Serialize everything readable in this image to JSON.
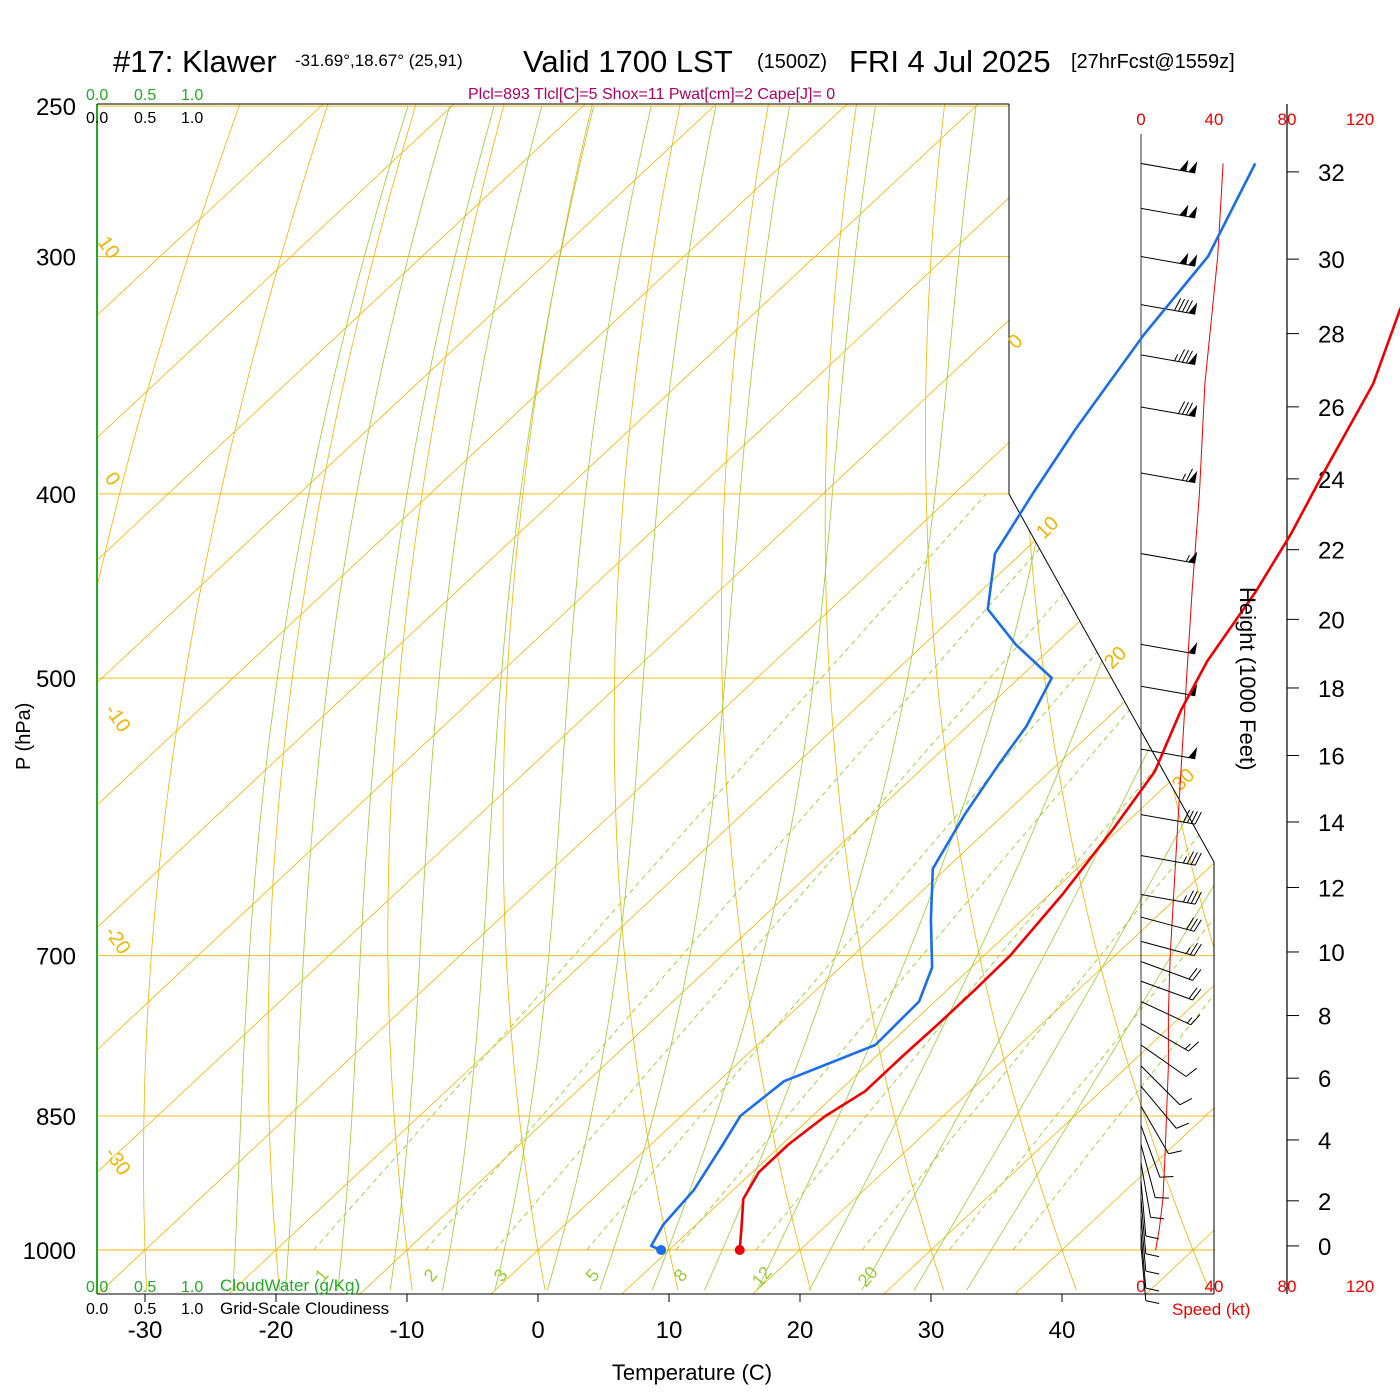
{
  "header": {
    "station": "#17: Klawer",
    "coords": "-31.69°,18.67° (25,91)",
    "valid": "Valid 1700 LST",
    "utc": "(1500Z)",
    "date": "FRI 4 Jul 2025",
    "forecast": "[27hrFcst@1559z]",
    "indices": "Plcl=893 Tlcl[C]=5 Shox=11 Pwat[cm]=2 Cape[J]= 0"
  },
  "colors": {
    "temperature": "#ee0000",
    "dewpoint": "#1a6ee8",
    "isotherm": "#f0b400",
    "dry_adiabat": "#f0b400",
    "moist_adiabat": "#99cc33",
    "mixing_ratio": "#99cc33",
    "cloudwater": "#22aa22",
    "indices": "#aa0066",
    "speed": "#ee0000"
  },
  "chart_data": {
    "type": "line",
    "title": "#17: Klawer Valid 1700 LST (1500Z) FRI 4 Jul 2025 [27hrFcst@1559z]",
    "xlabel": "Temperature (C)",
    "ylabel": "P (hPa)",
    "y2label": "Height (1000 Feet)",
    "speed_label": "Speed (kt)",
    "y_scale": "log",
    "ylim": [
      1000,
      250
    ],
    "pressure_ticks": [
      "250",
      "300",
      "400",
      "500",
      "700",
      "850",
      "1000"
    ],
    "pressure_values": [
      250,
      300,
      400,
      500,
      700,
      850,
      1000
    ],
    "temp_ticks": [
      "-30",
      "-20",
      "-10",
      "0",
      "10",
      "20",
      "30",
      "40"
    ],
    "temp_values": [
      -30,
      -20,
      -10,
      0,
      10,
      20,
      30,
      40
    ],
    "height_ticks": [
      "0",
      "2",
      "4",
      "6",
      "8",
      "10",
      "12",
      "14",
      "16",
      "18",
      "20",
      "22",
      "24",
      "26",
      "28",
      "30",
      "32"
    ],
    "height_values": [
      0.5,
      2,
      4,
      6,
      8,
      10,
      12,
      14,
      16,
      18,
      20,
      22,
      24,
      26,
      28,
      30,
      32.3
    ],
    "speed_ticks": [
      "0",
      "40",
      "80",
      "120"
    ],
    "speed_values": [
      0,
      40,
      80,
      120
    ],
    "cloud_ticks": [
      "0.0",
      "0.5",
      "1.0"
    ],
    "cloudwater_label": "CloudWater (g/Kg)",
    "cloudiness_label": "Grid-Scale Cloudiness",
    "dry_adiabat_labels": [
      "10",
      "0",
      "-10",
      "-20",
      "-30",
      "0",
      "10",
      "20",
      "30"
    ],
    "mixing_ratio_labels": [
      "1",
      "2",
      "3",
      "5",
      "8",
      "12",
      "20"
    ],
    "series": [
      {
        "name": "Temperature",
        "points": [
          [
            15.4,
            1000
          ],
          [
            13.5,
            970
          ],
          [
            11.5,
            940
          ],
          [
            10.5,
            910
          ],
          [
            10.5,
            880
          ],
          [
            11.0,
            850
          ],
          [
            12.0,
            825
          ],
          [
            12.0,
            790
          ],
          [
            12.1,
            760
          ],
          [
            12.1,
            730
          ],
          [
            12.0,
            700
          ],
          [
            11.0,
            650
          ],
          [
            9.5,
            600
          ],
          [
            8.0,
            560
          ],
          [
            5.0,
            520
          ],
          [
            3.0,
            490
          ],
          [
            1.0,
            450
          ],
          [
            -1.0,
            420
          ],
          [
            -3.5,
            390
          ],
          [
            -7.0,
            350
          ],
          [
            -11.0,
            320
          ],
          [
            -13.5,
            300
          ],
          [
            -16.5,
            280
          ],
          [
            -18.0,
            268
          ]
        ]
      },
      {
        "name": "Dewpoint",
        "points": [
          [
            9.4,
            1000
          ],
          [
            8.3,
            995
          ],
          [
            7.5,
            970
          ],
          [
            7.0,
            930
          ],
          [
            5.5,
            880
          ],
          [
            4.5,
            850
          ],
          [
            5.0,
            815
          ],
          [
            9.0,
            780
          ],
          [
            8.8,
            740
          ],
          [
            7.0,
            710
          ],
          [
            3.0,
            670
          ],
          [
            -1.0,
            630
          ],
          [
            -3.0,
            590
          ],
          [
            -4.5,
            555
          ],
          [
            -5.5,
            530
          ],
          [
            -7.5,
            500
          ],
          [
            -13.0,
            480
          ],
          [
            -18.0,
            460
          ],
          [
            -22.0,
            430
          ],
          [
            -24.0,
            400
          ],
          [
            -26.0,
            370
          ],
          [
            -28.5,
            330
          ],
          [
            -30.0,
            300
          ],
          [
            -34.0,
            268
          ]
        ]
      },
      {
        "name": "Wind speed",
        "points": [
          [
            8,
            1000
          ],
          [
            10,
            975
          ],
          [
            12,
            940
          ],
          [
            13,
            900
          ],
          [
            14,
            850
          ],
          [
            15,
            800
          ],
          [
            15,
            750
          ],
          [
            16,
            700
          ],
          [
            20,
            600
          ],
          [
            25,
            500
          ],
          [
            28,
            450
          ],
          [
            32,
            400
          ],
          [
            35,
            350
          ],
          [
            42,
            300
          ],
          [
            45,
            268
          ]
        ]
      }
    ],
    "wind_barbs": [
      {
        "p": 268,
        "dir": 280,
        "spd": 100
      },
      {
        "p": 283,
        "dir": 280,
        "spd": 100
      },
      {
        "p": 300,
        "dir": 280,
        "spd": 100
      },
      {
        "p": 318,
        "dir": 280,
        "spd": 90
      },
      {
        "p": 338,
        "dir": 280,
        "spd": 85
      },
      {
        "p": 360,
        "dir": 280,
        "spd": 80
      },
      {
        "p": 390,
        "dir": 280,
        "spd": 65
      },
      {
        "p": 430,
        "dir": 280,
        "spd": 55
      },
      {
        "p": 480,
        "dir": 280,
        "spd": 50
      },
      {
        "p": 505,
        "dir": 280,
        "spd": 50
      },
      {
        "p": 545,
        "dir": 280,
        "spd": 50
      },
      {
        "p": 590,
        "dir": 280,
        "spd": 40
      },
      {
        "p": 620,
        "dir": 280,
        "spd": 35
      },
      {
        "p": 650,
        "dir": 280,
        "spd": 35
      },
      {
        "p": 668,
        "dir": 285,
        "spd": 30
      },
      {
        "p": 688,
        "dir": 285,
        "spd": 25
      },
      {
        "p": 705,
        "dir": 290,
        "spd": 20
      },
      {
        "p": 722,
        "dir": 290,
        "spd": 20
      },
      {
        "p": 740,
        "dir": 295,
        "spd": 15
      },
      {
        "p": 760,
        "dir": 300,
        "spd": 15
      },
      {
        "p": 780,
        "dir": 305,
        "spd": 10
      },
      {
        "p": 800,
        "dir": 315,
        "spd": 10
      },
      {
        "p": 820,
        "dir": 320,
        "spd": 10
      },
      {
        "p": 840,
        "dir": 330,
        "spd": 10
      },
      {
        "p": 860,
        "dir": 340,
        "spd": 10
      },
      {
        "p": 880,
        "dir": 345,
        "spd": 10
      },
      {
        "p": 900,
        "dir": 350,
        "spd": 10
      },
      {
        "p": 920,
        "dir": 355,
        "spd": 10
      },
      {
        "p": 940,
        "dir": 355,
        "spd": 10
      },
      {
        "p": 960,
        "dir": 355,
        "spd": 10
      },
      {
        "p": 980,
        "dir": 355,
        "spd": 10
      },
      {
        "p": 995,
        "dir": 355,
        "spd": 10
      }
    ],
    "grid": true
  }
}
